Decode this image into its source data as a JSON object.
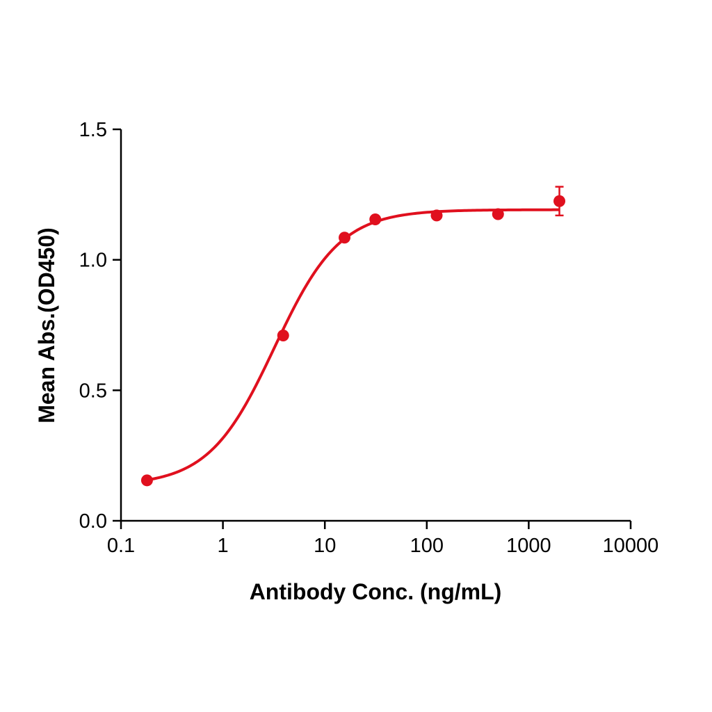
{
  "chart_data": {
    "type": "scatter",
    "title": "",
    "xlabel": "Antibody Conc. (ng/mL)",
    "ylabel": "Mean Abs.(OD450)",
    "xscale": "log",
    "xlim": [
      0.1,
      10000
    ],
    "ylim": [
      0.0,
      1.5
    ],
    "x_tick_labels": [
      "0.1",
      "1",
      "10",
      "100",
      "1000",
      "10000"
    ],
    "x_tick_values": [
      0.1,
      1,
      10,
      100,
      1000,
      10000
    ],
    "y_tick_labels": [
      "0.0",
      "0.5",
      "1.0",
      "1.5"
    ],
    "y_tick_values": [
      0.0,
      0.5,
      1.0,
      1.5
    ],
    "grid": false,
    "legend": "none",
    "series": [
      {
        "color": "#e0101e",
        "x": [
          0.18,
          3.9,
          15.6,
          31.25,
          125,
          500,
          2000
        ],
        "y": [
          0.155,
          0.71,
          1.085,
          1.155,
          1.17,
          1.175,
          1.225
        ],
        "error": [
          0,
          0,
          0,
          0,
          0,
          0,
          0.055
        ],
        "fit": {
          "model": "4PL",
          "bottom": 0.135,
          "top": 1.192,
          "ec50": 3.2,
          "hill": 1.35
        }
      }
    ]
  }
}
